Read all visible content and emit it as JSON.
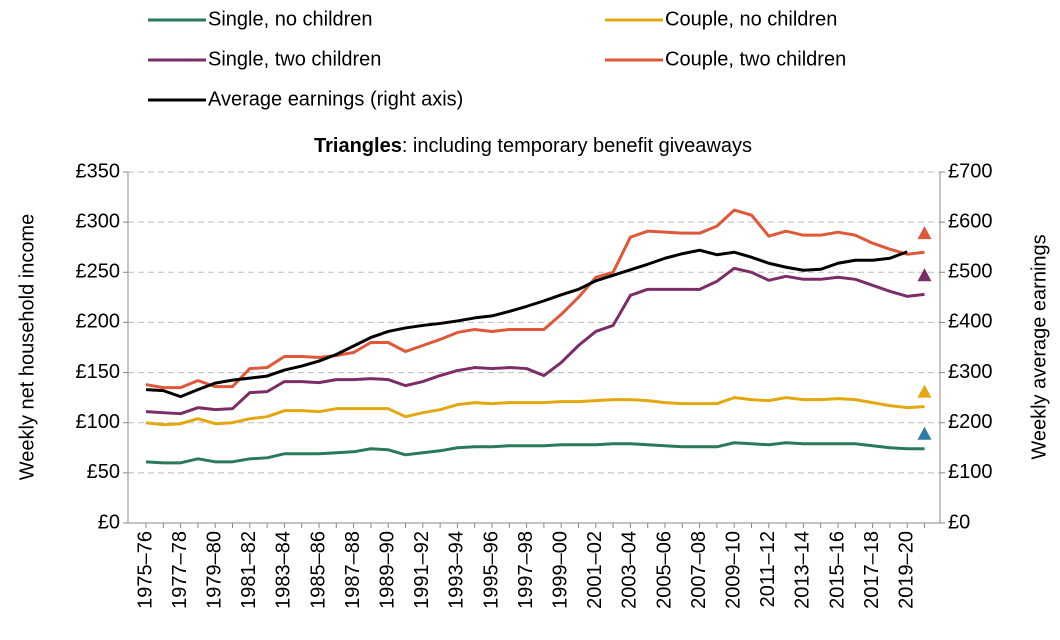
{
  "chart_data": {
    "type": "line",
    "annotation": {
      "bold": "Triangles",
      "text": ": including temporary benefit giveaways"
    },
    "ylabel": "Weekly net household income",
    "y2label": "Weekly average earnings",
    "categories": [
      "1975–76",
      null,
      "1977–78",
      null,
      "1979–80",
      null,
      "1981–82",
      null,
      "1983–84",
      null,
      "1985–86",
      null,
      "1987–88",
      null,
      "1989–90",
      null,
      "1991–92",
      null,
      "1993–94",
      null,
      "1995–96",
      null,
      "1997–98",
      null,
      "1999–00",
      null,
      "2001–02",
      null,
      "2003–04",
      null,
      "2005–06",
      null,
      "2007–08",
      null,
      "2009–10",
      null,
      "2011–12",
      null,
      "2013–14",
      null,
      "2015–16",
      null,
      "2017–18",
      null,
      "2019–20",
      null
    ],
    "series": [
      {
        "name": "Single, no children",
        "color": "#2a7a5a",
        "values": [
          61,
          60,
          60,
          64,
          61,
          61,
          64,
          65,
          69,
          69,
          69,
          70,
          71,
          74,
          73,
          68,
          70,
          72,
          75,
          76,
          76,
          77,
          77,
          77,
          78,
          78,
          78,
          79,
          79,
          78,
          77,
          76,
          76,
          76,
          80,
          79,
          78,
          80,
          79,
          79,
          79,
          79,
          77,
          75,
          74,
          74
        ]
      },
      {
        "name": "Couple, no children",
        "color": "#e3a80f",
        "values": [
          100,
          98,
          99,
          104,
          99,
          100,
          104,
          106,
          112,
          112,
          111,
          114,
          114,
          114,
          114,
          106,
          110,
          113,
          118,
          120,
          119,
          120,
          120,
          120,
          121,
          121,
          122,
          123,
          123,
          122,
          120,
          119,
          119,
          119,
          125,
          123,
          122,
          125,
          123,
          123,
          124,
          123,
          120,
          117,
          115,
          116
        ]
      },
      {
        "name": "Single, two children",
        "color": "#7b2d67",
        "values": [
          111,
          110,
          109,
          115,
          113,
          114,
          130,
          131,
          141,
          141,
          140,
          143,
          143,
          144,
          143,
          137,
          141,
          147,
          152,
          155,
          154,
          155,
          154,
          147,
          160,
          177,
          191,
          197,
          227,
          233,
          233,
          233,
          233,
          241,
          254,
          250,
          242,
          246,
          243,
          243,
          245,
          243,
          237,
          231,
          226,
          228
        ]
      },
      {
        "name": "Couple, two children",
        "color": "#e0583a",
        "values": [
          138,
          135,
          135,
          142,
          136,
          136,
          154,
          155,
          166,
          166,
          165,
          167,
          170,
          180,
          180,
          171,
          177,
          183,
          190,
          193,
          191,
          193,
          193,
          193,
          208,
          225,
          245,
          250,
          285,
          291,
          290,
          289,
          289,
          296,
          312,
          307,
          286,
          291,
          287,
          287,
          290,
          287,
          279,
          273,
          268,
          270
        ]
      },
      {
        "name": "Average earnings (right axis)",
        "color": "#000000",
        "axis": "y2",
        "values": [
          266,
          264,
          252,
          266,
          279,
          285,
          289,
          293,
          305,
          313,
          323,
          336,
          353,
          370,
          382,
          389,
          394,
          398,
          403,
          409,
          413,
          422,
          432,
          443,
          455,
          466,
          483,
          494,
          505,
          516,
          528,
          537,
          544,
          535,
          540,
          530,
          518,
          510,
          504,
          506,
          518,
          524,
          524,
          528,
          541,
          null
        ]
      }
    ],
    "triangles": [
      {
        "color": "#2e79a6",
        "value": 89
      },
      {
        "color": "#e3a80f",
        "value": 131
      },
      {
        "color": "#7b2d67",
        "value": 247
      },
      {
        "color": "#e0583a",
        "value": 289
      }
    ],
    "ylim": [
      0,
      350
    ],
    "yticks": [
      {
        "value": 0,
        "label": "£0"
      },
      {
        "value": 50,
        "label": "£50"
      },
      {
        "value": 100,
        "label": "£100"
      },
      {
        "value": 150,
        "label": "£150"
      },
      {
        "value": 200,
        "label": "£200"
      },
      {
        "value": 250,
        "label": "£250"
      },
      {
        "value": 300,
        "label": "£300"
      },
      {
        "value": 350,
        "label": "£350"
      }
    ],
    "y2lim": [
      0,
      700
    ],
    "y2ticks": [
      {
        "value": 0,
        "label": "£0"
      },
      {
        "value": 100,
        "label": "£100"
      },
      {
        "value": 200,
        "label": "£200"
      },
      {
        "value": 300,
        "label": "£300"
      },
      {
        "value": 400,
        "label": "£400"
      },
      {
        "value": 500,
        "label": "£500"
      },
      {
        "value": 600,
        "label": "£600"
      },
      {
        "value": 700,
        "label": "£700"
      }
    ],
    "grid": true
  }
}
